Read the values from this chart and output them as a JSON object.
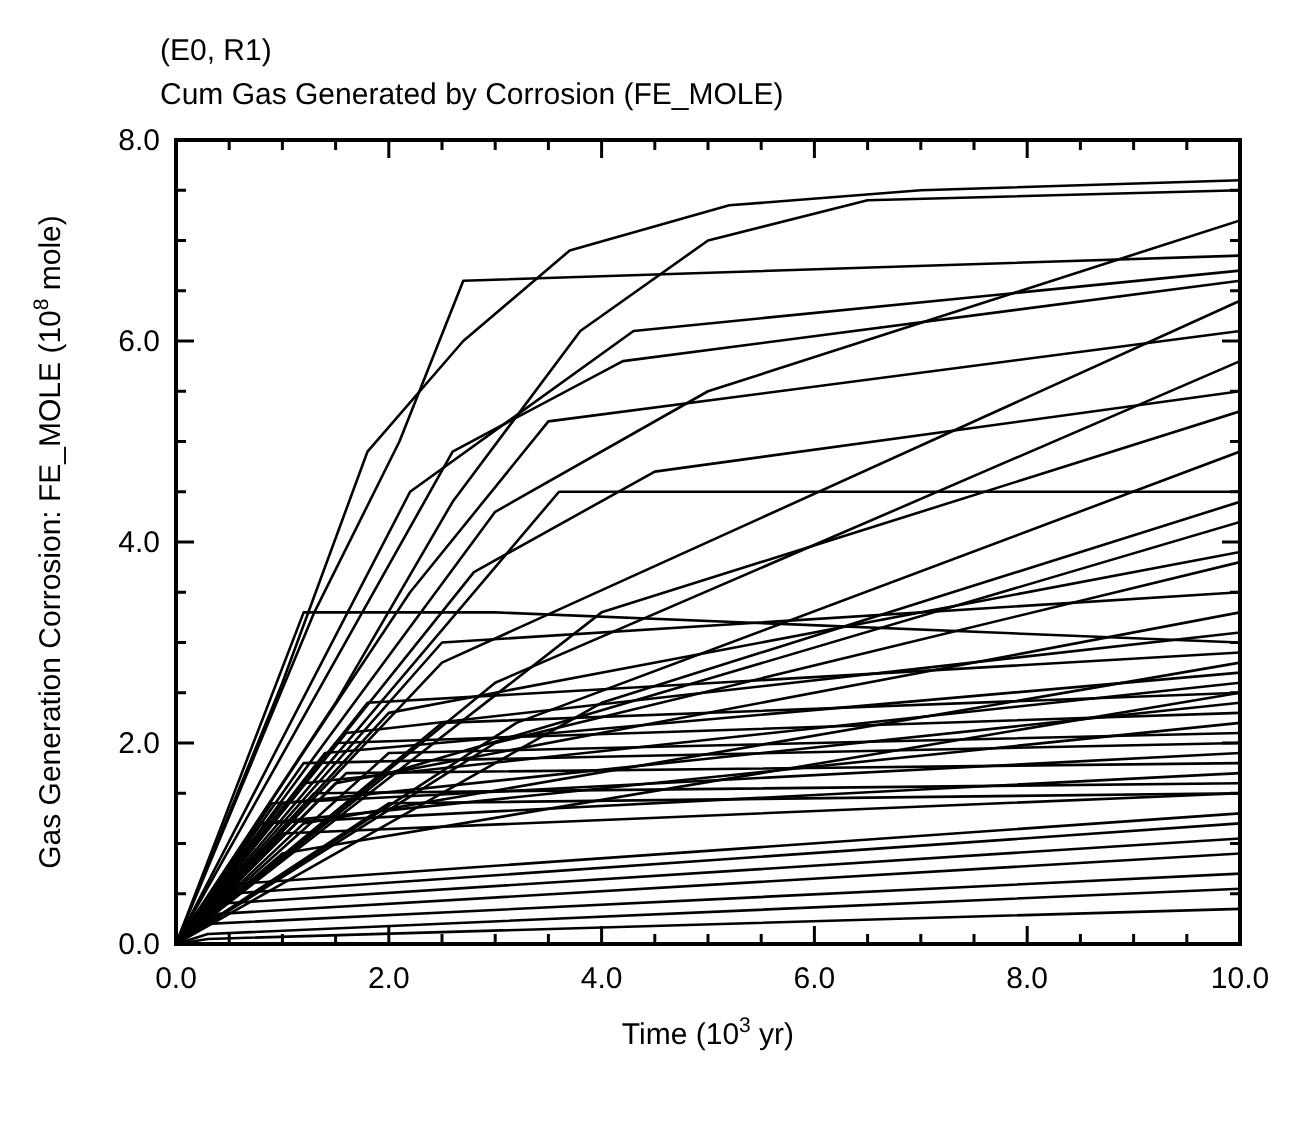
{
  "chart_data": {
    "type": "line",
    "title": "(E0, R1)",
    "subtitle": "Cum Gas Generated by Corrosion (FE_MOLE)",
    "xlabel": "Time (10$^{3}$ yr)",
    "ylabel": "Gas Generation Corrosion:  FE_MOLE (10$^{8}$ mole)",
    "xlim": [
      0,
      10
    ],
    "ylim": [
      0,
      8
    ],
    "xticks": [
      {
        "value": 0,
        "label": "0.0"
      },
      {
        "value": 0.5,
        "label": null
      },
      {
        "value": 1,
        "label": null
      },
      {
        "value": 1.5,
        "label": null
      },
      {
        "value": 2,
        "label": "2.0"
      },
      {
        "value": 2.5,
        "label": null
      },
      {
        "value": 3,
        "label": null
      },
      {
        "value": 3.5,
        "label": null
      },
      {
        "value": 4,
        "label": "4.0"
      },
      {
        "value": 4.5,
        "label": null
      },
      {
        "value": 5,
        "label": null
      },
      {
        "value": 5.5,
        "label": null
      },
      {
        "value": 6,
        "label": "6.0"
      },
      {
        "value": 6.5,
        "label": null
      },
      {
        "value": 7,
        "label": null
      },
      {
        "value": 7.5,
        "label": null
      },
      {
        "value": 8,
        "label": "8.0"
      },
      {
        "value": 8.5,
        "label": null
      },
      {
        "value": 9,
        "label": null
      },
      {
        "value": 9.5,
        "label": null
      },
      {
        "value": 10,
        "label": "10.0"
      }
    ],
    "yticks": [
      {
        "value": 0,
        "label": "0.0"
      },
      {
        "value": 0.5,
        "label": null
      },
      {
        "value": 1,
        "label": null
      },
      {
        "value": 1.5,
        "label": null
      },
      {
        "value": 2,
        "label": "2.0"
      },
      {
        "value": 2.5,
        "label": null
      },
      {
        "value": 3,
        "label": null
      },
      {
        "value": 3.5,
        "label": null
      },
      {
        "value": 4,
        "label": "4.0"
      },
      {
        "value": 4.5,
        "label": null
      },
      {
        "value": 5,
        "label": null
      },
      {
        "value": 5.5,
        "label": null
      },
      {
        "value": 6,
        "label": "6.0"
      },
      {
        "value": 6.5,
        "label": null
      },
      {
        "value": 7,
        "label": null
      },
      {
        "value": 7.5,
        "label": null
      },
      {
        "value": 8,
        "label": "8.0"
      }
    ],
    "series": [
      {
        "color": "#000000",
        "x": [
          0,
          1,
          1.8,
          2.7,
          3.7,
          5.2,
          7,
          10
        ],
        "values": [
          0,
          2.6,
          4.9,
          6.0,
          6.9,
          7.35,
          7.5,
          7.6
        ]
      },
      {
        "color": "#000000",
        "x": [
          0,
          1.5,
          2.6,
          3.8,
          5,
          6.5,
          10
        ],
        "values": [
          0,
          2.4,
          4.4,
          6.1,
          7.0,
          7.4,
          7.5
        ]
      },
      {
        "color": "#000000",
        "x": [
          0,
          1.3,
          2.1,
          2.7,
          10
        ],
        "values": [
          0,
          3.3,
          5.0,
          6.6,
          6.85
        ]
      },
      {
        "color": "#000000",
        "x": [
          0,
          2.2,
          4.3,
          10
        ],
        "values": [
          0,
          4.5,
          6.1,
          6.7
        ]
      },
      {
        "color": "#000000",
        "x": [
          0,
          2.6,
          4.2,
          10
        ],
        "values": [
          0,
          4.9,
          5.8,
          6.6
        ]
      },
      {
        "color": "#000000",
        "x": [
          0,
          3,
          5,
          10
        ],
        "values": [
          0,
          4.3,
          5.5,
          7.2
        ]
      },
      {
        "color": "#000000",
        "x": [
          0,
          2.2,
          3.5,
          10
        ],
        "values": [
          0,
          3.5,
          5.2,
          6.1
        ]
      },
      {
        "color": "#000000",
        "x": [
          0,
          1.2,
          3,
          10
        ],
        "values": [
          0,
          3.3,
          3.3,
          3.0
        ]
      },
      {
        "color": "#000000",
        "x": [
          0,
          3.6,
          10
        ],
        "values": [
          0,
          4.5,
          4.5
        ]
      },
      {
        "color": "#000000",
        "x": [
          0,
          2.8,
          4.5,
          10
        ],
        "values": [
          0,
          3.7,
          4.7,
          5.5
        ]
      },
      {
        "color": "#000000",
        "x": [
          0,
          2.5,
          10
        ],
        "values": [
          0,
          2.8,
          6.4
        ]
      },
      {
        "color": "#000000",
        "x": [
          0,
          3,
          10
        ],
        "values": [
          0,
          2.6,
          5.8
        ]
      },
      {
        "color": "#000000",
        "x": [
          0,
          4,
          10
        ],
        "values": [
          0,
          3.3,
          5.3
        ]
      },
      {
        "color": "#000000",
        "x": [
          0,
          3.2,
          10
        ],
        "values": [
          0,
          2.2,
          4.9
        ]
      },
      {
        "color": "#000000",
        "x": [
          0,
          4,
          10
        ],
        "values": [
          0,
          2.4,
          4.4
        ]
      },
      {
        "color": "#000000",
        "x": [
          0,
          2,
          10
        ],
        "values": [
          0,
          1.7,
          4.2
        ]
      },
      {
        "color": "#000000",
        "x": [
          0,
          3,
          10
        ],
        "values": [
          0,
          2.0,
          3.8
        ]
      },
      {
        "color": "#000000",
        "x": [
          0,
          2.5,
          10
        ],
        "values": [
          0,
          3.0,
          3.5
        ]
      },
      {
        "color": "#000000",
        "x": [
          0,
          1.6,
          10
        ],
        "values": [
          0,
          2.1,
          3.1
        ]
      },
      {
        "color": "#000000",
        "x": [
          0,
          1.8,
          10
        ],
        "values": [
          0,
          2.4,
          2.9
        ]
      },
      {
        "color": "#000000",
        "x": [
          0,
          1.4,
          10
        ],
        "values": [
          0,
          1.9,
          2.7
        ]
      },
      {
        "color": "#000000",
        "x": [
          0,
          1.2,
          10
        ],
        "values": [
          0,
          1.6,
          2.6
        ]
      },
      {
        "color": "#000000",
        "x": [
          0,
          2.5,
          10
        ],
        "values": [
          0,
          2.2,
          2.5
        ]
      },
      {
        "color": "#000000",
        "x": [
          0,
          1,
          10
        ],
        "values": [
          0,
          1.4,
          2.4
        ]
      },
      {
        "color": "#000000",
        "x": [
          0,
          1.5,
          10
        ],
        "values": [
          0,
          2.0,
          2.3
        ]
      },
      {
        "color": "#000000",
        "x": [
          0,
          0.8,
          10
        ],
        "values": [
          0,
          1.2,
          2.2
        ]
      },
      {
        "color": "#000000",
        "x": [
          0,
          2,
          10
        ],
        "values": [
          0,
          1.9,
          2.1
        ]
      },
      {
        "color": "#000000",
        "x": [
          0,
          1.2,
          10
        ],
        "values": [
          0,
          1.8,
          2.0
        ]
      },
      {
        "color": "#000000",
        "x": [
          0,
          0.9,
          10
        ],
        "values": [
          0,
          1.4,
          1.9
        ]
      },
      {
        "color": "#000000",
        "x": [
          0,
          1.6,
          10
        ],
        "values": [
          0,
          1.7,
          1.8
        ]
      },
      {
        "color": "#000000",
        "x": [
          0,
          0.8,
          10
        ],
        "values": [
          0,
          1.2,
          1.7
        ]
      },
      {
        "color": "#000000",
        "x": [
          0,
          1.3,
          10
        ],
        "values": [
          0,
          1.5,
          1.6
        ]
      },
      {
        "color": "#000000",
        "x": [
          0,
          1,
          10
        ],
        "values": [
          0,
          1.1,
          1.5
        ]
      },
      {
        "color": "#000000",
        "x": [
          0,
          2,
          10
        ],
        "values": [
          0,
          1.4,
          1.5
        ]
      },
      {
        "color": "#000000",
        "x": [
          0,
          0.6,
          10
        ],
        "values": [
          0,
          0.6,
          1.3
        ]
      },
      {
        "color": "#000000",
        "x": [
          0,
          0.5,
          10
        ],
        "values": [
          0,
          0.5,
          1.2
        ]
      },
      {
        "color": "#000000",
        "x": [
          0,
          0.4,
          10
        ],
        "values": [
          0,
          0.4,
          1.05
        ]
      },
      {
        "color": "#000000",
        "x": [
          0,
          0.4,
          10
        ],
        "values": [
          0,
          0.3,
          0.9
        ]
      },
      {
        "color": "#000000",
        "x": [
          0,
          0.3,
          10
        ],
        "values": [
          0,
          0.2,
          0.7
        ]
      },
      {
        "color": "#000000",
        "x": [
          0,
          0.3,
          10
        ],
        "values": [
          0,
          0.1,
          0.55
        ]
      },
      {
        "color": "#000000",
        "x": [
          0,
          0.3,
          10
        ],
        "values": [
          0,
          0.05,
          0.35
        ]
      },
      {
        "color": "#000000",
        "x": [
          0,
          1.5,
          10
        ],
        "values": [
          0,
          1.6,
          3.3
        ]
      },
      {
        "color": "#000000",
        "x": [
          0,
          2,
          10
        ],
        "values": [
          0,
          2.3,
          3.9
        ]
      },
      {
        "color": "#000000",
        "x": [
          0,
          1.2,
          10
        ],
        "values": [
          0,
          1.2,
          2.8
        ]
      },
      {
        "color": "#000000",
        "x": [
          0,
          1,
          10
        ],
        "values": [
          0,
          0.9,
          2.5
        ]
      }
    ]
  }
}
